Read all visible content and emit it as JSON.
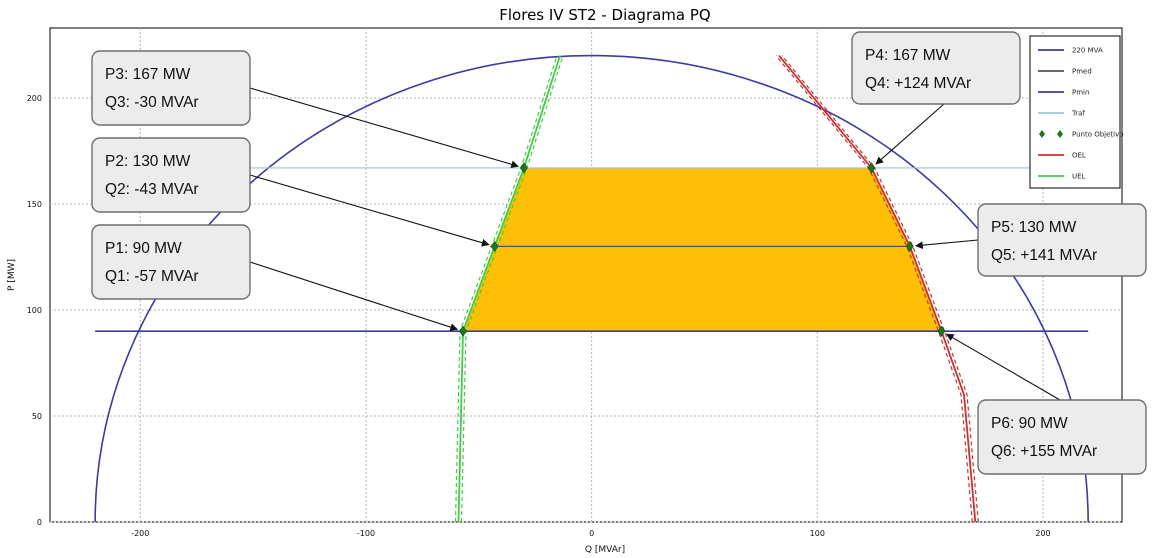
{
  "chart_data": {
    "type": "line",
    "title": "Flores IV ST2 - Diagrama PQ",
    "xlabel": "Q [MVAr]",
    "ylabel": "P [MW]",
    "xlim": [
      -240,
      235
    ],
    "ylim": [
      0,
      233
    ],
    "xticks": [
      -200,
      -100,
      0,
      100,
      200
    ],
    "yticks": [
      0,
      50,
      100,
      150,
      200
    ],
    "grid": true,
    "legend_position": "top-right",
    "legend": [
      {
        "name": "220 MVA",
        "color": "#3c3ca0",
        "style": "line"
      },
      {
        "name": "Pmed",
        "color": "#555555",
        "style": "line"
      },
      {
        "name": "Pmin",
        "color": "#3c3ca0",
        "style": "line"
      },
      {
        "name": "Traf",
        "color": "#9ec5d6",
        "style": "line"
      },
      {
        "name": "Punto Objetivo",
        "color": "#1a7a1a",
        "style": "marker"
      },
      {
        "name": "OEL",
        "color": "#c83232",
        "style": "line"
      },
      {
        "name": "UEL",
        "color": "#44cc44",
        "style": "line"
      }
    ],
    "capability_circle": {
      "radius": 220,
      "color": "#3c3ca0"
    },
    "pmin_line": {
      "y": 90,
      "x": [
        -220,
        220
      ],
      "color": "#3c3ca0"
    },
    "traf_line": {
      "y": 167,
      "x": [
        -220,
        220
      ],
      "color": "#9ec5d6"
    },
    "pmed_line": {
      "y": 130,
      "x": [
        -45,
        140
      ],
      "color": "#555555"
    },
    "uel": {
      "x": [
        -59,
        -57,
        -43,
        -30,
        -14
      ],
      "y": [
        0,
        90,
        130,
        167,
        220
      ],
      "color": "#44cc44",
      "offset": 3
    },
    "oel": {
      "x": [
        170,
        165,
        155,
        141,
        124,
        83
      ],
      "y": [
        0,
        60,
        90,
        130,
        167,
        220
      ],
      "color": "#c83232",
      "offset": 3
    },
    "operating_region": {
      "points": [
        [
          -57,
          90
        ],
        [
          -43,
          130
        ],
        [
          -30,
          167
        ],
        [
          124,
          167
        ],
        [
          141,
          130
        ],
        [
          155,
          90
        ]
      ],
      "color": "#fdc006"
    },
    "target_points": [
      {
        "name": "P1",
        "q": -57,
        "p": 90
      },
      {
        "name": "P2",
        "q": -43,
        "p": 130
      },
      {
        "name": "P3",
        "q": -30,
        "p": 167
      },
      {
        "name": "P4",
        "q": 124,
        "p": 167
      },
      {
        "name": "P5",
        "q": 141,
        "p": 130
      },
      {
        "name": "P6",
        "q": 155,
        "p": 90
      }
    ],
    "callouts": [
      {
        "id": "p3",
        "line1": "P3: 167 MW",
        "line2": "Q3: -30 MVAr",
        "target": 2
      },
      {
        "id": "p2",
        "line1": "P2: 130 MW",
        "line2": "Q2: -43 MVAr",
        "target": 1
      },
      {
        "id": "p1",
        "line1": "P1: 90 MW",
        "line2": "Q1: -57 MVAr",
        "target": 0
      },
      {
        "id": "p4",
        "line1": "P4: 167 MW",
        "line2": "Q4: +124 MVAr",
        "target": 3
      },
      {
        "id": "p5",
        "line1": "P5: 130 MW",
        "line2": "Q5: +141 MVAr",
        "target": 4
      },
      {
        "id": "p6",
        "line1": "P6: 90 MW",
        "line2": "Q6: +155 MVAr",
        "target": 5
      }
    ]
  }
}
